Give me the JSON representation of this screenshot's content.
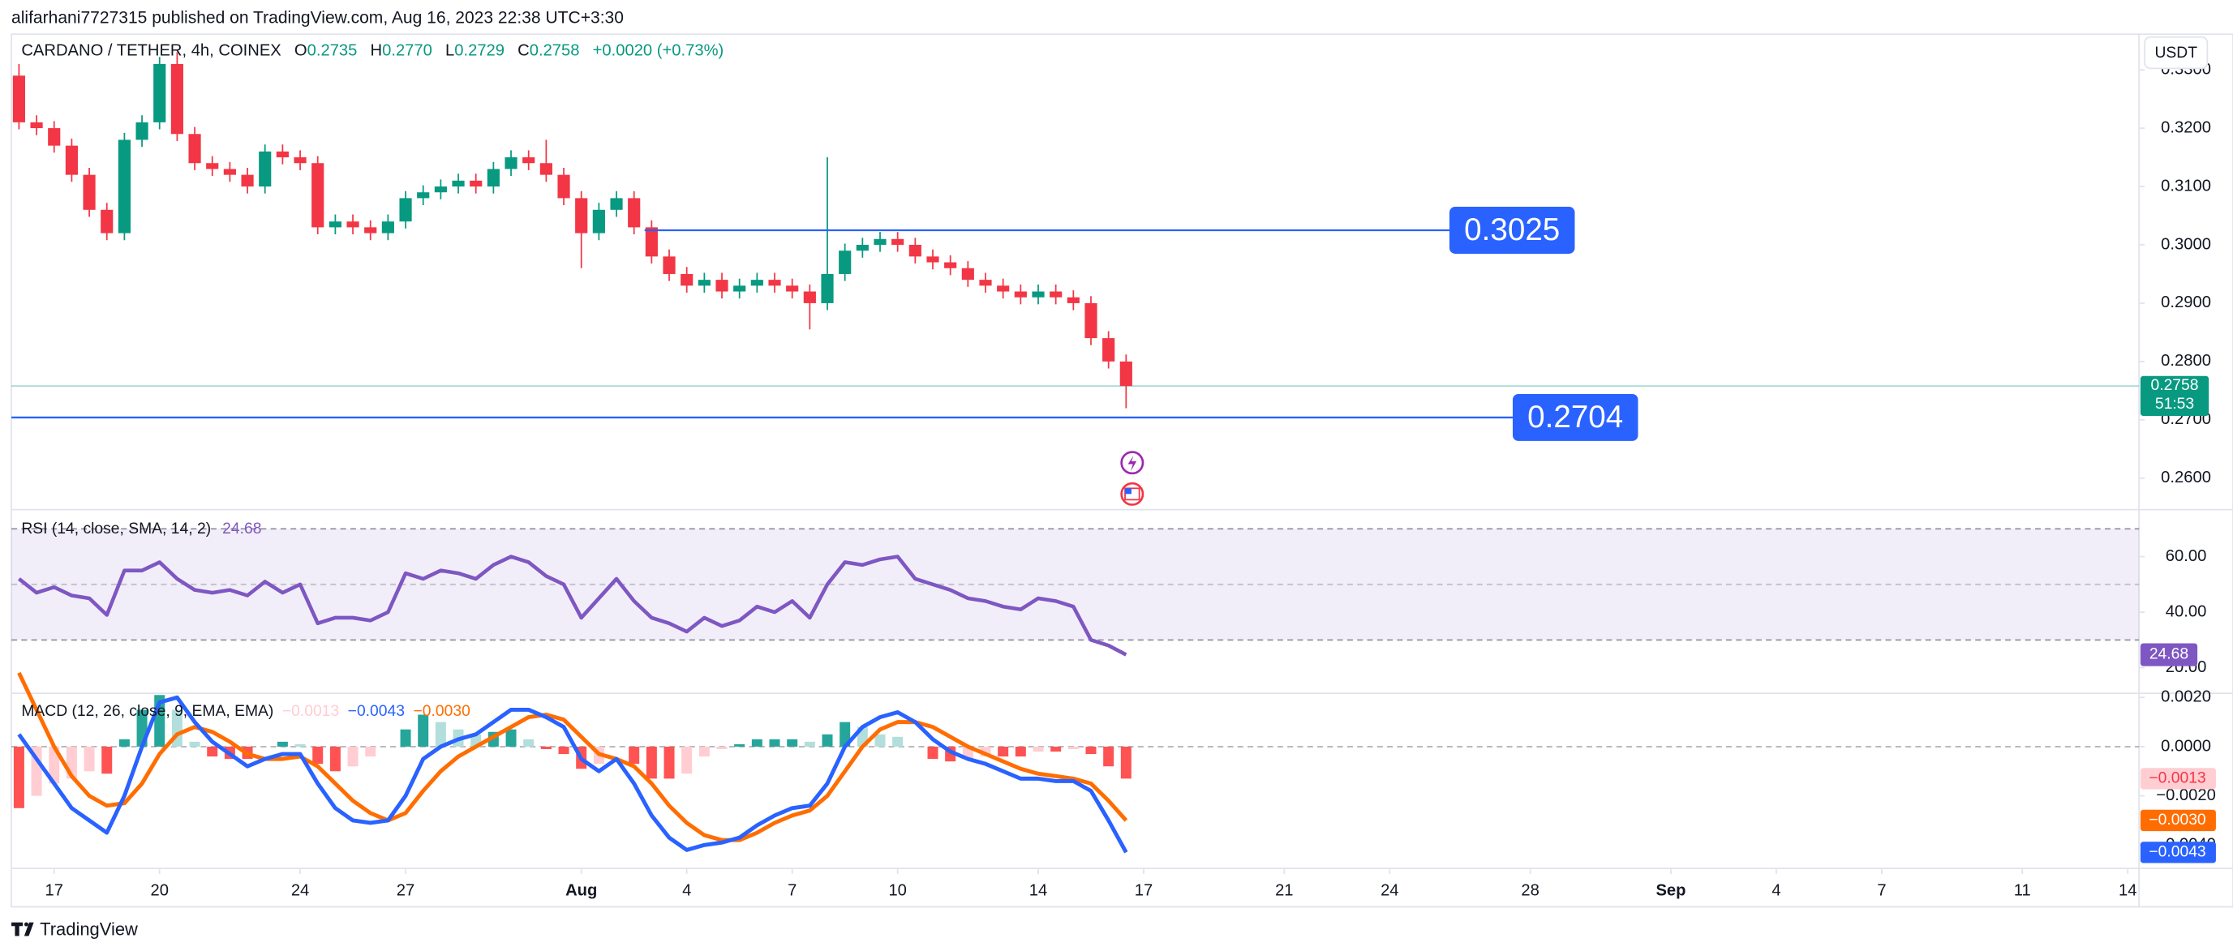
{
  "page": {
    "attribution": "alifarhani7727315 published on TradingView.com, Aug 16, 2023 22:38 UTC+3:30",
    "symbol": "CARDANO / TETHER, 4h, COINEX",
    "ohlc": [
      {
        "key": "O",
        "value": "0.2735"
      },
      {
        "key": "H",
        "value": "0.2770"
      },
      {
        "key": "L",
        "value": "0.2729"
      },
      {
        "key": "C",
        "value": "0.2758"
      }
    ],
    "change": "+0.0020 (+0.73%)",
    "currency": "USDT",
    "brand": "TradingView"
  },
  "chart_data": [
    {
      "type": "candlestick",
      "up_color": "#089981",
      "down_color": "#f23645",
      "x": [
        -1,
        -0.5,
        0,
        0.5,
        1,
        1.5,
        2,
        2.5,
        3,
        3.5,
        4,
        4.5,
        5,
        5.5,
        6,
        6.5,
        7,
        7.5,
        8,
        8.5,
        9,
        9.5,
        10,
        10.5,
        11,
        11.5,
        12,
        12.5,
        13,
        13.5,
        14,
        14.5,
        15,
        15.5,
        16,
        16.5,
        17,
        17.5,
        18,
        18.5,
        19,
        19.5,
        20,
        20.5,
        21,
        21.5,
        22,
        22.5,
        23,
        23.5,
        24,
        24.5,
        25,
        25.5,
        26,
        26.5,
        27,
        27.5,
        28,
        28.5,
        29,
        29.5,
        30,
        30.5
      ],
      "open": [
        0.329,
        0.321,
        0.32,
        0.317,
        0.312,
        0.306,
        0.302,
        0.318,
        0.321,
        0.331,
        0.319,
        0.314,
        0.313,
        0.312,
        0.31,
        0.316,
        0.315,
        0.314,
        0.303,
        0.304,
        0.303,
        0.302,
        0.304,
        0.308,
        0.309,
        0.31,
        0.311,
        0.31,
        0.313,
        0.315,
        0.314,
        0.312,
        0.308,
        0.302,
        0.306,
        0.308,
        0.303,
        0.298,
        0.295,
        0.293,
        0.294,
        0.292,
        0.293,
        0.294,
        0.293,
        0.292,
        0.29,
        0.295,
        0.299,
        0.3,
        0.301,
        0.3,
        0.298,
        0.297,
        0.296,
        0.294,
        0.293,
        0.292,
        0.291,
        0.292,
        0.291,
        0.29,
        0.284,
        0.28
      ],
      "high": [
        0.331,
        0.3222,
        0.3212,
        0.3182,
        0.3132,
        0.3072,
        0.3192,
        0.3222,
        0.3322,
        0.333,
        0.3202,
        0.3152,
        0.3142,
        0.3132,
        0.3172,
        0.3172,
        0.3162,
        0.3152,
        0.3052,
        0.3052,
        0.3042,
        0.3052,
        0.3092,
        0.3102,
        0.3112,
        0.3122,
        0.3122,
        0.3142,
        0.3162,
        0.3162,
        0.318,
        0.3132,
        0.3092,
        0.3072,
        0.3092,
        0.3092,
        0.3042,
        0.2992,
        0.2962,
        0.2952,
        0.2952,
        0.2942,
        0.2952,
        0.2952,
        0.2942,
        0.2932,
        0.315,
        0.3002,
        0.3012,
        0.3022,
        0.3022,
        0.3012,
        0.2992,
        0.2982,
        0.2972,
        0.2952,
        0.2942,
        0.2932,
        0.2932,
        0.2932,
        0.2922,
        0.2912,
        0.2852,
        0.2812
      ],
      "low": [
        0.3198,
        0.3188,
        0.3158,
        0.3108,
        0.3048,
        0.3008,
        0.3008,
        0.3168,
        0.3198,
        0.3178,
        0.3128,
        0.3118,
        0.3108,
        0.3088,
        0.3088,
        0.3138,
        0.3128,
        0.3018,
        0.3018,
        0.3018,
        0.3008,
        0.3008,
        0.3028,
        0.3068,
        0.3078,
        0.3088,
        0.3088,
        0.3088,
        0.3118,
        0.3128,
        0.3108,
        0.3068,
        0.296,
        0.3008,
        0.3048,
        0.3018,
        0.2968,
        0.2938,
        0.2918,
        0.2918,
        0.2908,
        0.2908,
        0.2918,
        0.2918,
        0.2908,
        0.2855,
        0.2888,
        0.2938,
        0.2978,
        0.2988,
        0.2988,
        0.2968,
        0.2958,
        0.2948,
        0.2928,
        0.2918,
        0.2908,
        0.2898,
        0.2898,
        0.2898,
        0.2888,
        0.2828,
        0.2788,
        0.272
      ],
      "close": [
        0.321,
        0.32,
        0.317,
        0.312,
        0.306,
        0.302,
        0.318,
        0.321,
        0.331,
        0.319,
        0.314,
        0.313,
        0.312,
        0.31,
        0.316,
        0.315,
        0.314,
        0.303,
        0.304,
        0.303,
        0.302,
        0.304,
        0.308,
        0.309,
        0.31,
        0.311,
        0.31,
        0.313,
        0.315,
        0.314,
        0.312,
        0.308,
        0.302,
        0.306,
        0.308,
        0.303,
        0.298,
        0.295,
        0.293,
        0.294,
        0.292,
        0.293,
        0.294,
        0.293,
        0.292,
        0.29,
        0.295,
        0.299,
        0.3,
        0.301,
        0.3,
        0.298,
        0.297,
        0.296,
        0.294,
        0.293,
        0.292,
        0.291,
        0.292,
        0.291,
        0.29,
        0.284,
        0.28,
        0.2758
      ],
      "xlim": [
        -1.216,
        59.32
      ],
      "xticks": [
        {
          "value": 0,
          "label": "17"
        },
        {
          "value": 3,
          "label": "20"
        },
        {
          "value": 7,
          "label": "24"
        },
        {
          "value": 10,
          "label": "27"
        },
        {
          "value": 15,
          "label": "Aug"
        },
        {
          "value": 18,
          "label": "4"
        },
        {
          "value": 21,
          "label": "7"
        },
        {
          "value": 24,
          "label": "10"
        },
        {
          "value": 28,
          "label": "14"
        },
        {
          "value": 31,
          "label": "17"
        },
        {
          "value": 35,
          "label": "21"
        },
        {
          "value": 38,
          "label": "24"
        },
        {
          "value": 42,
          "label": "28"
        },
        {
          "value": 46,
          "label": "Sep"
        },
        {
          "value": 49,
          "label": "4"
        },
        {
          "value": 52,
          "label": "7"
        },
        {
          "value": 56,
          "label": "11"
        },
        {
          "value": 59,
          "label": "14"
        }
      ],
      "ylim": [
        0.2546,
        0.3361
      ],
      "yticks": [
        {
          "value": 0.26,
          "label": "0.2600"
        },
        {
          "value": 0.27,
          "label": "0.2700"
        },
        {
          "value": 0.28,
          "label": "0.2800"
        },
        {
          "value": 0.29,
          "label": "0.2900"
        },
        {
          "value": 0.3,
          "label": "0.3000"
        },
        {
          "value": 0.31,
          "label": "0.3100"
        },
        {
          "value": 0.32,
          "label": "0.3200"
        },
        {
          "value": 0.33,
          "label": "0.3300"
        }
      ],
      "levels": [
        {
          "value": 0.3025,
          "from": 16.8,
          "to": 39.7,
          "color": "#2962ff"
        },
        {
          "value": 0.2704,
          "from": -1.216,
          "to": 41.5,
          "color": "#2962ff"
        }
      ],
      "last_price": 0.2758,
      "countdown": "51:53"
    },
    {
      "type": "line",
      "title": "RSI (14, close, SMA, 14, 2)",
      "color": "#7e57c2",
      "band": [
        30,
        70
      ],
      "midline": 50,
      "band_color": "rgba(126,87,194,0.1)",
      "values": [
        52,
        47,
        49,
        46,
        45,
        39,
        55,
        55,
        58,
        52,
        48,
        47,
        48,
        46,
        51,
        47,
        50,
        36,
        38,
        38,
        37,
        40,
        54,
        52,
        55,
        54,
        52,
        57,
        60,
        58,
        53,
        50,
        38,
        45,
        52,
        44,
        38,
        36,
        33,
        38,
        35,
        37,
        42,
        40,
        44,
        38,
        50,
        58,
        57,
        59,
        60,
        52,
        50,
        48,
        45,
        44,
        42,
        41,
        45,
        44,
        42,
        30,
        28,
        24.68
      ],
      "last_value": 24.68,
      "ylim": [
        10.8,
        76.9
      ],
      "yticks": [
        {
          "value": 20,
          "label": "20.00"
        },
        {
          "value": 40,
          "label": "40.00"
        },
        {
          "value": 60,
          "label": "60.00"
        }
      ]
    },
    {
      "type": "macd",
      "title": "MACD (12, 26, close, 9, EMA, EMA)",
      "histogram": {
        "colors": {
          "up_rising": "#26a69a",
          "up_falling": "#b2dfdb",
          "down_rising": "#ffcdd2",
          "down_falling": "#ff5252"
        },
        "values": [
          -0.0025,
          -0.002,
          -0.0015,
          -0.0013,
          -0.001,
          -0.0011,
          0.0003,
          0.0015,
          0.0021,
          0.0015,
          0.0002,
          -0.0004,
          -0.0005,
          -0.0005,
          0,
          0.0002,
          0.0001,
          -0.0007,
          -0.001,
          -0.0008,
          -0.0004,
          0,
          0.0007,
          0.0013,
          0.001,
          0.0007,
          0.0005,
          0.0006,
          0.0007,
          0.0003,
          -0.0001,
          -0.0003,
          -0.0009,
          -0.0007,
          0,
          -0.0007,
          -0.0013,
          -0.0013,
          -0.0011,
          -0.0004,
          -0.0001,
          0.0001,
          0.0003,
          0.0003,
          0.0003,
          0.0002,
          0.0005,
          0.001,
          0.0008,
          0.0005,
          0.0004,
          0,
          -0.0005,
          -0.0006,
          -0.0005,
          -0.0004,
          -0.0004,
          -0.0004,
          -0.0002,
          -0.0002,
          -0.0001,
          -0.0003,
          -0.0008,
          -0.0013
        ],
        "last": {
          "value": -0.0013,
          "label": "−0.0013"
        }
      },
      "macd": {
        "color": "#2962ff",
        "values": [
          0.0005,
          -0.0005,
          -0.0015,
          -0.0025,
          -0.003,
          -0.0035,
          -0.002,
          0,
          0.0018,
          0.002,
          0.001,
          0.0002,
          -0.0003,
          -0.0008,
          -0.0005,
          -0.0003,
          -0.0003,
          -0.0015,
          -0.0025,
          -0.003,
          -0.0031,
          -0.003,
          -0.002,
          -0.0005,
          0,
          0.0003,
          0.0005,
          0.001,
          0.0015,
          0.0015,
          0.0012,
          0.0008,
          -0.0005,
          -0.001,
          -0.0005,
          -0.0015,
          -0.0028,
          -0.0037,
          -0.0042,
          -0.004,
          -0.0039,
          -0.0037,
          -0.0032,
          -0.0028,
          -0.0025,
          -0.0024,
          -0.0015,
          0,
          0.0008,
          0.0012,
          0.0014,
          0.001,
          0.0003,
          -0.0002,
          -0.0005,
          -0.0007,
          -0.001,
          -0.0013,
          -0.0013,
          -0.0014,
          -0.0014,
          -0.0018,
          -0.003,
          -0.0043
        ],
        "last": {
          "value": -0.0043,
          "label": "−0.0043"
        }
      },
      "signal": {
        "color": "#ff6d00",
        "values": [
          0.003,
          0.0015,
          0,
          -0.0012,
          -0.002,
          -0.0024,
          -0.0023,
          -0.0015,
          -0.0003,
          0.0005,
          0.0008,
          0.0006,
          0.0002,
          -0.0003,
          -0.0005,
          -0.0005,
          -0.0004,
          -0.0008,
          -0.0015,
          -0.0022,
          -0.0027,
          -0.003,
          -0.0027,
          -0.0018,
          -0.001,
          -0.0004,
          0,
          0.0004,
          0.0008,
          0.0012,
          0.0013,
          0.0011,
          0.0004,
          -0.0003,
          -0.0005,
          -0.0008,
          -0.0015,
          -0.0024,
          -0.0031,
          -0.0036,
          -0.0038,
          -0.0038,
          -0.0035,
          -0.0031,
          -0.0028,
          -0.0026,
          -0.002,
          -0.001,
          0,
          0.0007,
          0.001,
          0.001,
          0.0008,
          0.0004,
          0,
          -0.0003,
          -0.0006,
          -0.0009,
          -0.0011,
          -0.0012,
          -0.0013,
          -0.0015,
          -0.0022,
          -0.003
        ],
        "last": {
          "value": -0.003,
          "label": "−0.0030"
        }
      },
      "ylim": [
        -0.00495,
        0.00217
      ],
      "yticks": [
        {
          "value": -0.004,
          "label": "−0.0040"
        },
        {
          "value": -0.002,
          "label": "−0.0020"
        },
        {
          "value": 0,
          "label": "0.0000"
        },
        {
          "value": 0.002,
          "label": "0.0020"
        }
      ]
    }
  ]
}
